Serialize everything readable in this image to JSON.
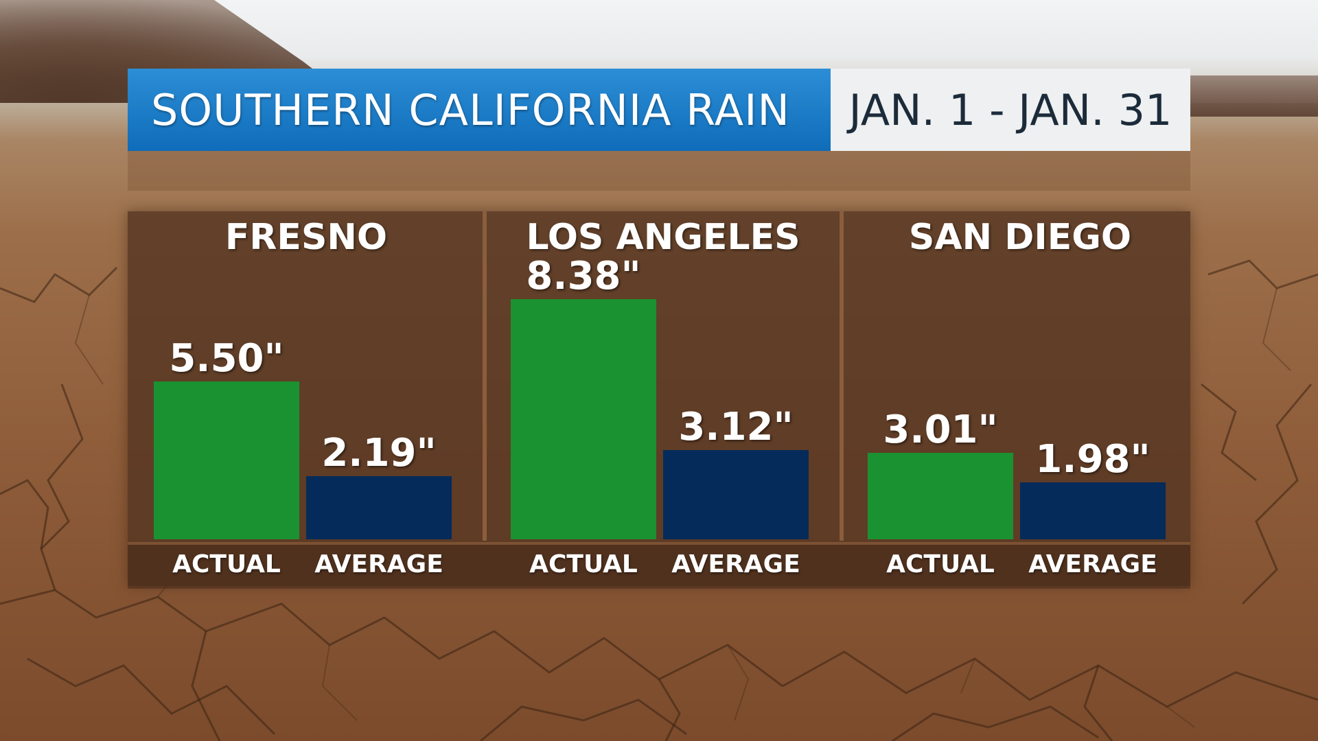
{
  "header": {
    "title": "SOUTHERN CALIFORNIA RAIN",
    "date_range": "JAN. 1 - JAN. 31"
  },
  "colors": {
    "title_bar": "#1776c3",
    "actual": "#1a9231",
    "average": "#052b5a"
  },
  "chart_data": {
    "type": "bar",
    "title": "SOUTHERN CALIFORNIA RAIN",
    "subtitle": "JAN. 1 - JAN. 31",
    "units": "inches",
    "categories": [
      "ACTUAL",
      "AVERAGE"
    ],
    "groups": [
      {
        "name": "FRESNO",
        "values": [
          5.5,
          2.19
        ],
        "labels": [
          "5.50\"",
          "2.19\""
        ]
      },
      {
        "name": "LOS ANGELES",
        "values": [
          8.38,
          3.12
        ],
        "labels": [
          "8.38\"",
          "3.12\""
        ]
      },
      {
        "name": "SAN DIEGO",
        "values": [
          3.01,
          1.98
        ],
        "labels": [
          "3.01\"",
          "1.98\""
        ]
      }
    ],
    "ylim": [
      0,
      9.5
    ],
    "grid": false,
    "legend": "none"
  }
}
